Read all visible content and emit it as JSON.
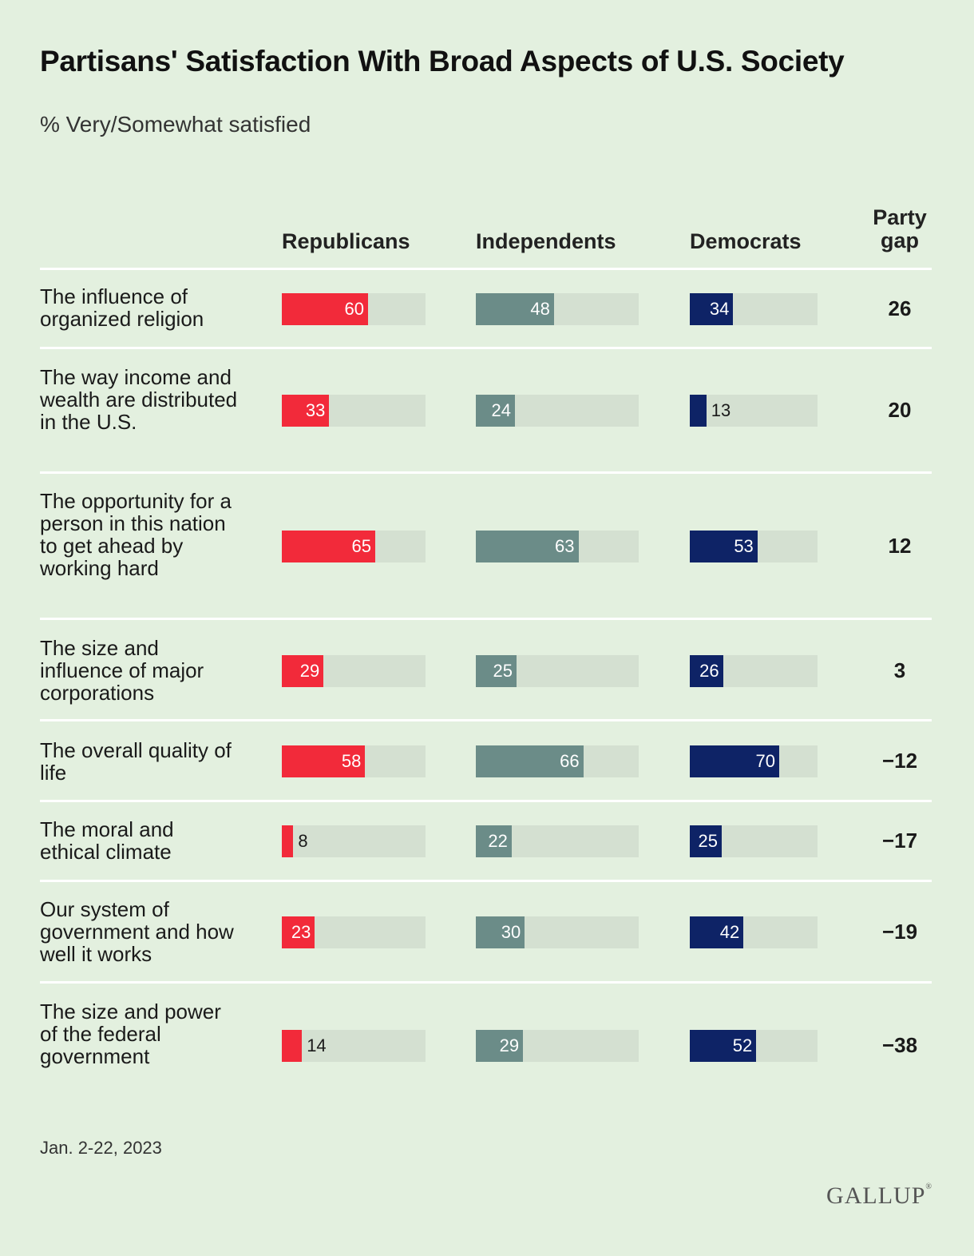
{
  "chart_data": {
    "type": "bar",
    "title": "Partisans' Satisfaction With Broad Aspects of U.S. Society",
    "subtitle": "% Very/Somewhat satisfied",
    "columns": [
      "Republicans",
      "Independents",
      "Democrats"
    ],
    "gap_header_line1": "Party",
    "gap_header_line2": "gap",
    "ylim": [
      0,
      100
    ],
    "categories": [
      "The influence of organized religion",
      "The way income and wealth are distributed in the U.S.",
      "The opportunity for a person in this nation to get ahead by working hard",
      "The size and influence of major corporations",
      "The overall quality of life",
      "The moral and ethical climate",
      "Our system of government and how well it works",
      "The size and power of the federal government"
    ],
    "series": [
      {
        "name": "Republicans",
        "color": "#f22a3a",
        "values": [
          60,
          33,
          65,
          29,
          58,
          8,
          23,
          14
        ]
      },
      {
        "name": "Independents",
        "color": "#6b8c88",
        "values": [
          48,
          24,
          63,
          25,
          66,
          22,
          30,
          29
        ]
      },
      {
        "name": "Democrats",
        "color": "#0e2366",
        "values": [
          34,
          13,
          53,
          26,
          70,
          25,
          42,
          52
        ]
      }
    ],
    "party_gap": [
      "26",
      "20",
      "12",
      "3",
      "−12",
      "−17",
      "−19",
      "−38"
    ],
    "source_note": "Jan. 2-22, 2023",
    "brand": "GALLUP",
    "track_color": "#d4e0d1"
  }
}
